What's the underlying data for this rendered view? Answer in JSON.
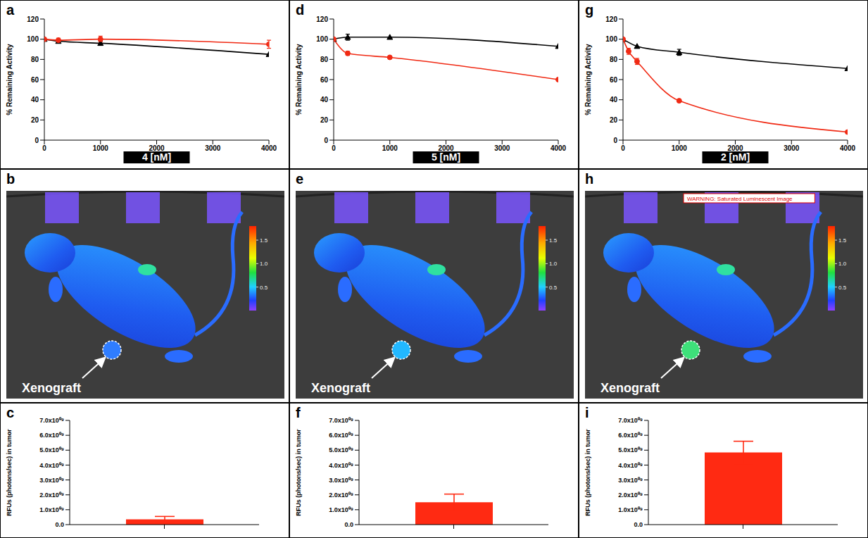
{
  "chart_data": [
    {
      "panel": "a",
      "type": "line",
      "x_label": "4 [nM]",
      "y_label": "% Remaining Activity",
      "xlim": [
        0,
        4000
      ],
      "xticks": [
        0,
        1000,
        2000,
        3000,
        4000
      ],
      "ylim": [
        0,
        120
      ],
      "yticks": [
        0,
        20,
        40,
        60,
        80,
        100,
        120
      ],
      "series": [
        {
          "color": "#000000",
          "marker": "triangle",
          "x": [
            0,
            250,
            1000,
            4000
          ],
          "values": [
            100,
            98,
            96,
            85
          ],
          "errors": [
            null,
            null,
            2,
            null
          ]
        },
        {
          "color": "#f02a14",
          "marker": "circle",
          "x": [
            0,
            250,
            1000,
            4000
          ],
          "values": [
            100,
            99,
            100,
            95
          ],
          "errors": [
            null,
            2,
            3,
            4
          ]
        }
      ]
    },
    {
      "panel": "b",
      "type": "image",
      "label": "Xenograft",
      "color": "#2f7dff",
      "colorbar": {
        "range": [
          0,
          1.8
        ],
        "ticks": [
          0.5,
          {
            "value": 1,
            "label": "1.0"
          },
          1.5
        ]
      }
    },
    {
      "panel": "c",
      "type": "bar",
      "y_label": "RFUs (photons/sec) in tumor",
      "categories": [
        null
      ],
      "values": [
        350000000
      ],
      "errors": [
        200000000
      ],
      "color": "#ff2a12",
      "ylim": [
        0,
        7000000000
      ],
      "yticks": [
        {
          "value": 0,
          "label": "0.0"
        },
        {
          "value": 1000000000,
          "label": "1.0x10⁰⁹"
        },
        {
          "value": 2000000000,
          "label": "2.0x10⁰⁹"
        },
        {
          "value": 3000000000,
          "label": "3.0x10⁰⁹"
        },
        {
          "value": 4000000000,
          "label": "4.0x10⁰⁹"
        },
        {
          "value": 5000000000,
          "label": "5.0x10⁰⁹"
        },
        {
          "value": 6000000000,
          "label": "6.0x10⁰⁹"
        },
        {
          "value": 7000000000,
          "label": "7.0x10⁰⁹"
        }
      ]
    },
    {
      "panel": "d",
      "type": "line",
      "x_label": "5 [nM]",
      "y_label": "% Remaining Activity",
      "xlim": [
        0,
        4000
      ],
      "xticks": [
        0,
        1000,
        2000,
        3000,
        4000
      ],
      "ylim": [
        0,
        120
      ],
      "yticks": [
        0,
        20,
        40,
        60,
        80,
        100,
        120
      ],
      "series": [
        {
          "color": "#000000",
          "marker": "triangle",
          "x": [
            0,
            250,
            1000,
            4000
          ],
          "values": [
            100,
            102,
            102,
            93
          ],
          "errors": [
            null,
            3,
            null,
            null
          ]
        },
        {
          "color": "#f02a14",
          "marker": "circle",
          "x": [
            0,
            250,
            1000,
            4000
          ],
          "values": [
            100,
            86,
            82,
            60
          ],
          "errors": [
            null,
            2,
            null,
            null
          ]
        }
      ]
    },
    {
      "panel": "e",
      "type": "image",
      "label": "Xenograft",
      "color": "#22b8ff",
      "colorbar": {
        "range": [
          0,
          1.8
        ],
        "ticks": [
          0.5,
          {
            "value": 1,
            "label": "1.0"
          },
          1.5
        ]
      }
    },
    {
      "panel": "f",
      "type": "bar",
      "y_label": "RFUs (photons/sec) in tumor",
      "categories": [
        null
      ],
      "values": [
        1500000000
      ],
      "errors": [
        550000000
      ],
      "color": "#ff2a12",
      "ylim": [
        0,
        7000000000
      ],
      "yticks": [
        {
          "value": 0,
          "label": "0.0"
        },
        {
          "value": 1000000000,
          "label": "1.0x10⁰⁹"
        },
        {
          "value": 2000000000,
          "label": "2.0x10⁰⁹"
        },
        {
          "value": 3000000000,
          "label": "3.0x10⁰⁹"
        },
        {
          "value": 4000000000,
          "label": "4.0x10⁰⁹"
        },
        {
          "value": 5000000000,
          "label": "5.0x10⁰⁹"
        },
        {
          "value": 6000000000,
          "label": "6.0x10⁰⁹"
        },
        {
          "value": 7000000000,
          "label": "7.0x10⁰⁹"
        }
      ]
    },
    {
      "panel": "g",
      "type": "line",
      "x_label": "2 [nM]",
      "y_label": "% Remaining Activity",
      "xlim": [
        0,
        4000
      ],
      "xticks": [
        0,
        1000,
        2000,
        3000,
        4000
      ],
      "ylim": [
        0,
        120
      ],
      "yticks": [
        0,
        20,
        40,
        60,
        80,
        100,
        120
      ],
      "series": [
        {
          "color": "#000000",
          "marker": "triangle",
          "x": [
            0,
            250,
            1000,
            4000
          ],
          "values": [
            100,
            93,
            87,
            71
          ],
          "errors": [
            null,
            null,
            3,
            null
          ]
        },
        {
          "color": "#f02a14",
          "marker": "circle",
          "x": [
            0,
            100,
            250,
            1000,
            4000
          ],
          "values": [
            100,
            88,
            78,
            39,
            8
          ],
          "errors": [
            null,
            3,
            3,
            null,
            null
          ]
        }
      ]
    },
    {
      "panel": "h",
      "type": "image",
      "label": "Xenograft",
      "warning": "WARNING: Saturated Luminescent Image",
      "color": "#3ee07a",
      "colorbar": {
        "range": [
          0,
          1.8
        ],
        "ticks": [
          0.5,
          {
            "value": 1,
            "label": "1.0"
          },
          1.5
        ]
      }
    },
    {
      "panel": "i",
      "type": "bar",
      "y_label": "RFUs (photons/sec) in tumor",
      "categories": [
        null
      ],
      "values": [
        4850000000
      ],
      "errors": [
        750000000
      ],
      "color": "#ff2a12",
      "ylim": [
        0,
        7000000000
      ],
      "yticks": [
        {
          "value": 0,
          "label": "0.0"
        },
        {
          "value": 1000000000,
          "label": "1.0x10⁰⁹"
        },
        {
          "value": 2000000000,
          "label": "2.0x10⁰⁹"
        },
        {
          "value": 3000000000,
          "label": "3.0x10⁰⁹"
        },
        {
          "value": 4000000000,
          "label": "4.0x10⁰⁹"
        },
        {
          "value": 5000000000,
          "label": "5.0x10⁰⁹"
        },
        {
          "value": 6000000000,
          "label": "6.0x10⁰⁹"
        },
        {
          "value": 7000000000,
          "label": "7.0x10⁰⁹"
        }
      ]
    }
  ]
}
